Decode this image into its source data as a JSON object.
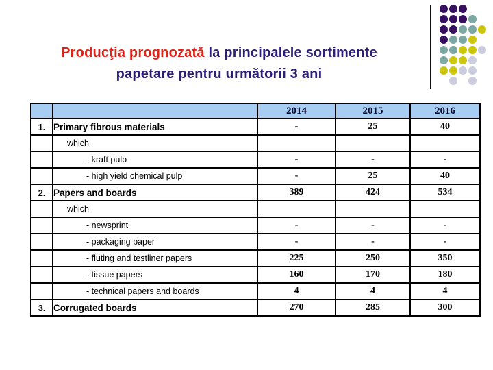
{
  "slide": {
    "title": {
      "highlight": "Producţia prognozată",
      "line1_rest": " la principalele sortimente",
      "line2": "papetare pentru următorii 3 ani",
      "highlight_color": "#de2318",
      "text_color": "#2c1f78"
    },
    "dots": {
      "pattern": [
        [
          "P",
          "P",
          "P",
          "",
          ""
        ],
        [
          "P",
          "P",
          "P",
          "T",
          ""
        ],
        [
          "P",
          "P",
          "T",
          "T",
          "Y"
        ],
        [
          "P",
          "T",
          "T",
          "Y",
          ""
        ],
        [
          "T",
          "T",
          "Y",
          "Y",
          "G"
        ],
        [
          "T",
          "Y",
          "Y",
          "G",
          ""
        ],
        [
          "Y",
          "Y",
          "G",
          "G",
          ""
        ],
        [
          "",
          "G",
          "",
          "G",
          ""
        ]
      ],
      "colors": {
        "P": "#36105f",
        "T": "#7ca7a2",
        "Y": "#ccc60d",
        "G": "#ccccdf"
      }
    }
  },
  "table": {
    "header_color": "#a8cdf2",
    "year_columns": [
      "2014",
      "2015",
      "2016"
    ],
    "rows": [
      {
        "num": "1.",
        "label": "Primary fibrous materials",
        "v1": "-",
        "v2": "25",
        "v3": "40"
      },
      {
        "num": "",
        "label": "which",
        "v1": "",
        "v2": "",
        "v3": ""
      },
      {
        "num": "",
        "label": "- kraft pulp",
        "v1": "-",
        "v2": "-",
        "v3": "-"
      },
      {
        "num": "",
        "label": "- high yield chemical pulp",
        "v1": "-",
        "v2": "25",
        "v3": "40"
      },
      {
        "num": "2.",
        "label": "Papers and boards",
        "v1": "389",
        "v2": "424",
        "v3": "534"
      },
      {
        "num": "",
        "label": "which",
        "v1": "",
        "v2": "",
        "v3": ""
      },
      {
        "num": "",
        "label": "- newsprint",
        "v1": "-",
        "v2": "-",
        "v3": "-"
      },
      {
        "num": "",
        "label": "- packaging paper",
        "v1": "-",
        "v2": "-",
        "v3": "-"
      },
      {
        "num": "",
        "label": "- fluting and testliner papers",
        "v1": "225",
        "v2": "250",
        "v3": "350"
      },
      {
        "num": "",
        "label": "- tissue papers",
        "v1": "160",
        "v2": "170",
        "v3": "180"
      },
      {
        "num": "",
        "label": "- technical papers and boards",
        "v1": "4",
        "v2": "4",
        "v3": "4"
      },
      {
        "num": "3.",
        "label": "Corrugated boards",
        "v1": "270",
        "v2": "285",
        "v3": "300"
      }
    ]
  }
}
